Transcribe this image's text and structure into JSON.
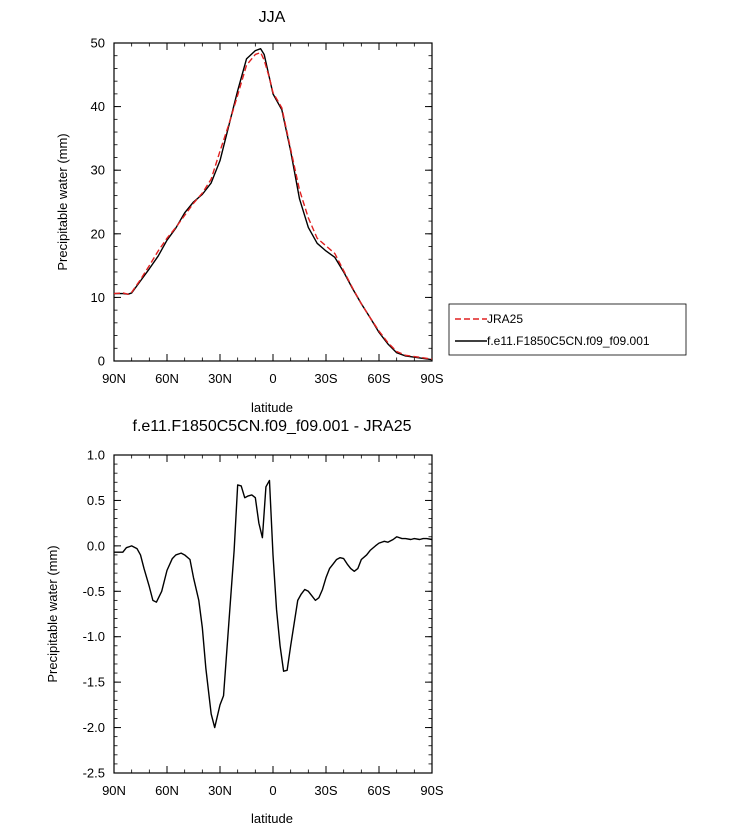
{
  "chart_data": [
    {
      "type": "line",
      "title": "JJA",
      "xlabel": "latitude",
      "ylabel": "Precipitable water (mm)",
      "xlim": [
        90,
        -90
      ],
      "ylim": [
        0,
        50
      ],
      "x_ticks": [
        90,
        60,
        30,
        0,
        -30,
        -60,
        -90
      ],
      "x_tick_labels": [
        "90N",
        "60N",
        "30N",
        "0",
        "30S",
        "60S",
        "90S"
      ],
      "y_ticks": [
        0,
        10,
        20,
        30,
        40,
        50
      ],
      "y_tick_labels": [
        "0",
        "10",
        "20",
        "30",
        "40",
        "50"
      ],
      "grid": false,
      "legend_position": "right",
      "series": [
        {
          "name": "JRA25",
          "color": "#e02020",
          "dash": "dashed",
          "x": [
            90,
            85,
            82,
            80,
            75,
            70,
            65,
            60,
            55,
            50,
            45,
            40,
            35,
            30,
            25,
            20,
            15,
            10,
            7,
            5,
            2,
            0,
            -5,
            -10,
            -15,
            -20,
            -25,
            -30,
            -35,
            -40,
            -45,
            -50,
            -55,
            -60,
            -65,
            -70,
            -75,
            -80,
            -85,
            -90
          ],
          "y": [
            10.6,
            10.7,
            10.5,
            10.8,
            12.8,
            15.0,
            17.3,
            19.3,
            21.0,
            22.9,
            24.8,
            26.4,
            28.6,
            33.0,
            37.2,
            41.8,
            46.5,
            48.2,
            48.5,
            47.3,
            44.5,
            42.2,
            39.8,
            33.3,
            26.9,
            22.5,
            19.3,
            18.1,
            16.9,
            14.2,
            11.5,
            9.0,
            6.8,
            4.7,
            2.9,
            1.5,
            0.9,
            0.7,
            0.5,
            0.3
          ]
        },
        {
          "name": "f.e11.F1850C5CN.f09_f09.001",
          "color": "#000000",
          "dash": "solid",
          "x": [
            90,
            85,
            82,
            80,
            75,
            70,
            65,
            60,
            55,
            50,
            45,
            40,
            35,
            30,
            25,
            20,
            15,
            10,
            7,
            5,
            2,
            0,
            -5,
            -10,
            -15,
            -20,
            -25,
            -30,
            -35,
            -40,
            -45,
            -50,
            -55,
            -60,
            -65,
            -70,
            -75,
            -80,
            -85,
            -90
          ],
          "y": [
            10.6,
            10.6,
            10.5,
            10.7,
            12.6,
            14.5,
            16.5,
            19.0,
            20.9,
            23.3,
            25.0,
            26.2,
            28.0,
            31.5,
            37.0,
            42.5,
            47.5,
            48.8,
            49.1,
            48.2,
            44.5,
            42.0,
            39.5,
            33.0,
            25.5,
            21.0,
            18.5,
            17.3,
            16.3,
            14.0,
            11.4,
            9.0,
            6.8,
            4.5,
            2.7,
            1.3,
            0.8,
            0.6,
            0.4,
            0.2
          ]
        }
      ]
    },
    {
      "type": "line",
      "title": "f.e11.F1850C5CN.f09_f09.001 - JRA25",
      "xlabel": "latitude",
      "ylabel": "Precipitable water (mm)",
      "xlim": [
        90,
        -90
      ],
      "ylim": [
        -2.5,
        1.0
      ],
      "x_ticks": [
        90,
        60,
        30,
        0,
        -30,
        -60,
        -90
      ],
      "x_tick_labels": [
        "90N",
        "60N",
        "30N",
        "0",
        "30S",
        "60S",
        "90S"
      ],
      "y_ticks": [
        1.0,
        0.5,
        0.0,
        -0.5,
        -1.0,
        -1.5,
        -2.0,
        -2.5
      ],
      "y_tick_labels": [
        "1.0",
        "0.5",
        "0.0",
        "-0.5",
        "-1.0",
        "-1.5",
        "-2.0",
        "-2.5"
      ],
      "grid": false,
      "series": [
        {
          "color": "#000000",
          "dash": "solid",
          "x": [
            90,
            87,
            85,
            83,
            80,
            77,
            75,
            73,
            70,
            68,
            66,
            63,
            60,
            57,
            55,
            52,
            50,
            47,
            45,
            42,
            40,
            38,
            35,
            33,
            30,
            28,
            25,
            22,
            20,
            18,
            16,
            14,
            12,
            10,
            8,
            6,
            4,
            2,
            0,
            -2,
            -4,
            -6,
            -8,
            -10,
            -12,
            -14,
            -16,
            -18,
            -20,
            -22,
            -24,
            -26,
            -28,
            -30,
            -32,
            -34,
            -36,
            -38,
            -40,
            -42,
            -44,
            -46,
            -48,
            -50,
            -53,
            -55,
            -58,
            -60,
            -63,
            -65,
            -68,
            -70,
            -73,
            -75,
            -78,
            -80,
            -83,
            -85,
            -87,
            -90
          ],
          "y": [
            -0.07,
            -0.07,
            -0.07,
            -0.02,
            0.0,
            -0.03,
            -0.1,
            -0.25,
            -0.45,
            -0.6,
            -0.62,
            -0.5,
            -0.27,
            -0.14,
            -0.1,
            -0.08,
            -0.1,
            -0.15,
            -0.35,
            -0.6,
            -0.9,
            -1.35,
            -1.85,
            -2.0,
            -1.75,
            -1.65,
            -0.85,
            -0.05,
            0.67,
            0.66,
            0.53,
            0.55,
            0.56,
            0.53,
            0.25,
            0.09,
            0.65,
            0.72,
            -0.1,
            -0.7,
            -1.1,
            -1.38,
            -1.37,
            -1.1,
            -0.85,
            -0.6,
            -0.53,
            -0.48,
            -0.5,
            -0.55,
            -0.6,
            -0.57,
            -0.48,
            -0.35,
            -0.25,
            -0.2,
            -0.15,
            -0.13,
            -0.14,
            -0.2,
            -0.25,
            -0.28,
            -0.25,
            -0.15,
            -0.1,
            -0.05,
            0.0,
            0.03,
            0.05,
            0.04,
            0.07,
            0.1,
            0.08,
            0.08,
            0.07,
            0.08,
            0.07,
            0.08,
            0.08,
            0.07
          ]
        }
      ]
    }
  ]
}
